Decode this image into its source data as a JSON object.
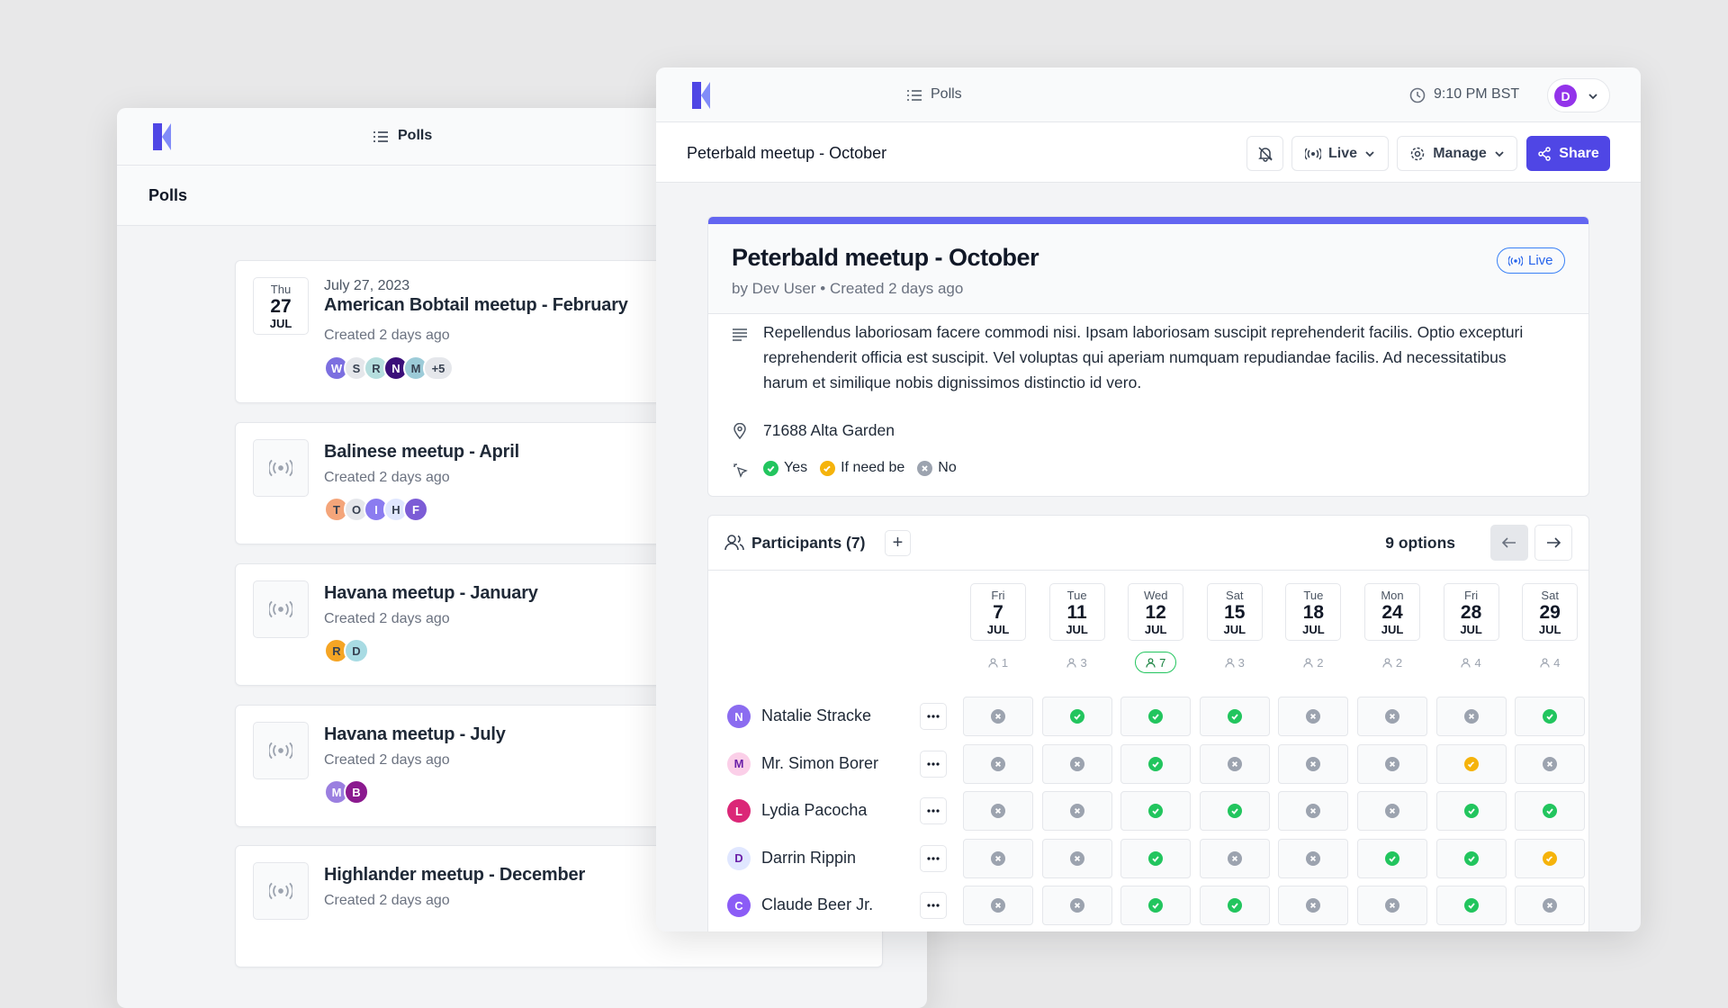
{
  "back_window": {
    "nav_label": "Polls",
    "header": "Polls",
    "polls": [
      {
        "date": {
          "weekday": "Thu",
          "day": 27,
          "month": "JUL"
        },
        "date_text": "July 27, 2023",
        "title": "American Bobtail meetup - February",
        "created": "Created 2 days ago",
        "avatars": [
          {
            "letter": "W",
            "color": "#7c6fe0"
          },
          {
            "letter": "S",
            "color": "#e5e7eb"
          },
          {
            "letter": "R",
            "color": "#b5dede"
          },
          {
            "letter": "N",
            "color": "#3b0f7a"
          },
          {
            "letter": "M",
            "color": "#9ccbd8"
          }
        ],
        "more": "+5"
      },
      {
        "title": "Balinese meetup - April",
        "created": "Created 2 days ago",
        "avatars": [
          {
            "letter": "T",
            "color": "#f4a57a"
          },
          {
            "letter": "O",
            "color": "#e5e7eb"
          },
          {
            "letter": "I",
            "color": "#8b7cf0"
          },
          {
            "letter": "H",
            "color": "#e0e7ff"
          },
          {
            "letter": "F",
            "color": "#7c5cd6"
          }
        ]
      },
      {
        "title": "Havana meetup - January",
        "created": "Created 2 days ago",
        "avatars": [
          {
            "letter": "R",
            "color": "#f5a524"
          },
          {
            "letter": "D",
            "color": "#a8dbe3"
          }
        ]
      },
      {
        "title": "Havana meetup - July",
        "created": "Created 2 days ago",
        "avatars": [
          {
            "letter": "M",
            "color": "#9b7fe0"
          },
          {
            "letter": "B",
            "color": "#8b1a8f"
          }
        ]
      },
      {
        "title": "Highlander meetup - December",
        "created": "Created 2 days ago",
        "avatars": []
      }
    ]
  },
  "front_window": {
    "nav_label": "Polls",
    "time": "9:10 PM BST",
    "user": "D",
    "toolbar_title": "Peterbald meetup - October",
    "buttons": {
      "live": "Live",
      "manage": "Manage",
      "share": "Share"
    },
    "card": {
      "title": "Peterbald meetup - October",
      "author": "by Dev User",
      "created": "Created 2 days ago",
      "badge": "Live",
      "description": "Repellendus laboriosam facere commodi nisi. Ipsam laboriosam suscipit reprehenderit facilis. Optio excepturi reprehenderit officia est suscipit. Vel voluptas qui aperiam numquam repudiandae facilis. Ad necessitatibus harum et similique nobis dignissimos distinctio id vero.",
      "location": "71688 Alta Garden",
      "legend": {
        "yes": "Yes",
        "ifneedbe": "If need be",
        "no": "No"
      }
    },
    "participants": {
      "title": "Participants (7)",
      "options": "9 options",
      "dates": [
        {
          "weekday": "Fri",
          "day": 7,
          "month": "JUL",
          "count": 1
        },
        {
          "weekday": "Tue",
          "day": 11,
          "month": "JUL",
          "count": 3
        },
        {
          "weekday": "Wed",
          "day": 12,
          "month": "JUL",
          "count": 7
        },
        {
          "weekday": "Sat",
          "day": 15,
          "month": "JUL",
          "count": 3
        },
        {
          "weekday": "Tue",
          "day": 18,
          "month": "JUL",
          "count": 2
        },
        {
          "weekday": "Mon",
          "day": 24,
          "month": "JUL",
          "count": 2
        },
        {
          "weekday": "Fri",
          "day": 28,
          "month": "JUL",
          "count": 4
        },
        {
          "weekday": "Sat",
          "day": 29,
          "month": "JUL",
          "count": 4
        }
      ],
      "people": [
        {
          "initial": "N",
          "name": "Natalie Stracke",
          "color": "#8b6cf0",
          "votes": [
            "no",
            "yes",
            "yes",
            "yes",
            "no",
            "no",
            "no",
            "yes"
          ]
        },
        {
          "initial": "M",
          "name": "Mr. Simon Borer",
          "color": "#fbcfe8",
          "votes": [
            "no",
            "no",
            "yes",
            "no",
            "no",
            "no",
            "ifneedbe",
            "no"
          ]
        },
        {
          "initial": "L",
          "name": "Lydia Pacocha",
          "color": "#db2777",
          "votes": [
            "no",
            "no",
            "yes",
            "yes",
            "no",
            "no",
            "yes",
            "yes"
          ]
        },
        {
          "initial": "D",
          "name": "Darrin Rippin",
          "color": "#e0e7ff",
          "votes": [
            "no",
            "no",
            "yes",
            "no",
            "no",
            "yes",
            "yes",
            "ifneedbe"
          ]
        },
        {
          "initial": "C",
          "name": "Claude Beer Jr.",
          "color": "#8b5cf6",
          "votes": [
            "no",
            "no",
            "yes",
            "yes",
            "no",
            "no",
            "yes",
            "no"
          ]
        }
      ]
    }
  }
}
